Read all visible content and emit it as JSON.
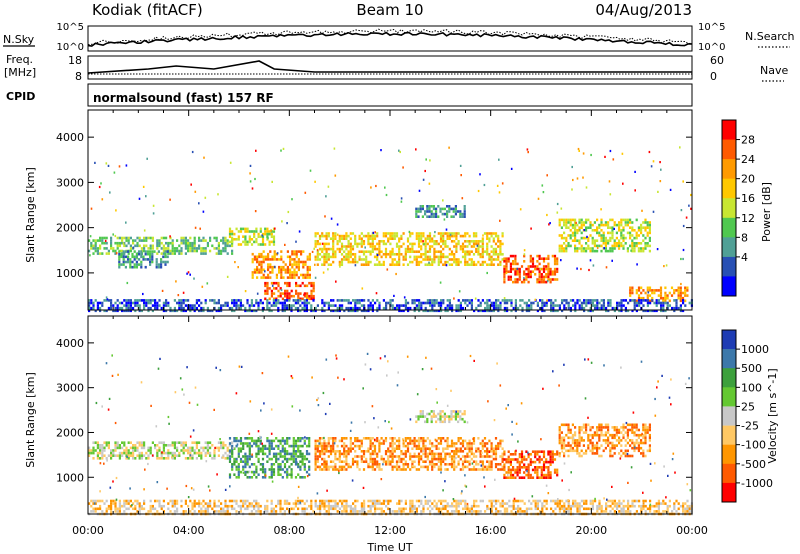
{
  "header": {
    "radar": "Kodiak (fitACF)",
    "beam": "Beam 10",
    "date": "04/Aug/2013"
  },
  "strip_panels": {
    "nsky_label": "N.Sky",
    "nsearch_label": "N.Search",
    "nsky_ticks": [
      "10^5",
      "10^0"
    ],
    "nsearch_ticks": [
      "10^5",
      "10^0"
    ],
    "freq_label_line1": "Freq.",
    "freq_label_line2": "[MHz]",
    "freq_ticks": [
      "18",
      "8"
    ],
    "nave_label": "Nave",
    "nave_ticks": [
      "60",
      "0"
    ],
    "cpid_label": "CPID",
    "cpid_value": "normalsound (fast) 157 RF"
  },
  "chart_data": [
    {
      "type": "heatmap",
      "name": "power",
      "ylabel": "Slant Range [km]",
      "xlabel": "",
      "x_ticks": [
        "00:00",
        "04:00",
        "08:00",
        "12:00",
        "16:00",
        "20:00",
        "00:00"
      ],
      "y_ticks": [
        "1000",
        "2000",
        "3000",
        "4000"
      ],
      "xlim": [
        0,
        24
      ],
      "ylim": [
        180,
        4600
      ],
      "colorbar_label": "Power [dB]",
      "colorbar_ticks": [
        "28",
        "24",
        "20",
        "16",
        "12",
        "8",
        "4"
      ],
      "colorbar_colors": [
        "#ff0000",
        "#ff5a00",
        "#ff9a00",
        "#ffc800",
        "#c8e632",
        "#50c850",
        "#50a096",
        "#2850b4",
        "#0000ff"
      ],
      "echo_regions": [
        {
          "t0": 0.0,
          "t1": 5.7,
          "r0": 1450,
          "r1": 1800,
          "level": 5
        },
        {
          "t0": 1.2,
          "t1": 3.2,
          "r0": 1150,
          "r1": 1500,
          "level": 6
        },
        {
          "t0": 5.6,
          "t1": 7.4,
          "r0": 1600,
          "r1": 2000,
          "level": 4
        },
        {
          "t0": 6.5,
          "t1": 8.8,
          "r0": 900,
          "r1": 1500,
          "level": 2
        },
        {
          "t0": 7.0,
          "t1": 9.0,
          "r0": 400,
          "r1": 800,
          "level": 1
        },
        {
          "t0": 9.0,
          "t1": 16.5,
          "r0": 1200,
          "r1": 1900,
          "level": 3
        },
        {
          "t0": 13.0,
          "t1": 15.0,
          "r0": 2250,
          "r1": 2500,
          "level": 6
        },
        {
          "t0": 16.5,
          "t1": 18.6,
          "r0": 800,
          "r1": 1400,
          "level": 1
        },
        {
          "t0": 18.7,
          "t1": 22.3,
          "r0": 1500,
          "r1": 2200,
          "level": 4
        },
        {
          "t0": 21.5,
          "t1": 23.8,
          "r0": 380,
          "r1": 700,
          "level": 2
        },
        {
          "t0": 0.0,
          "t1": 24.0,
          "r0": 180,
          "r1": 420,
          "level": 7
        }
      ]
    },
    {
      "type": "heatmap",
      "name": "velocity",
      "ylabel": "Slant Range [km]",
      "xlabel": "Time UT",
      "x_ticks": [
        "00:00",
        "04:00",
        "08:00",
        "12:00",
        "16:00",
        "20:00",
        "00:00"
      ],
      "y_ticks": [
        "1000",
        "2000",
        "3000",
        "4000"
      ],
      "xlim": [
        0,
        24
      ],
      "ylim": [
        180,
        4600
      ],
      "colorbar_label": "Velocity [m s^-1]",
      "colorbar_ticks": [
        "1000",
        "500",
        "100",
        "25",
        "-25",
        "-100",
        "-500",
        "-1000"
      ],
      "colorbar_colors": [
        "#1e3cb4",
        "#3c78aa",
        "#3ca03c",
        "#64c832",
        "#c8c8c8",
        "#ffc864",
        "#ff9600",
        "#ff5a00",
        "#ff0000"
      ],
      "echo_regions": [
        {
          "t0": 0.0,
          "t1": 5.7,
          "r0": 1450,
          "r1": 1800,
          "level": 4
        },
        {
          "t0": 5.6,
          "t1": 8.8,
          "r0": 1000,
          "r1": 1900,
          "level": 2
        },
        {
          "t0": 9.0,
          "t1": 16.5,
          "r0": 1200,
          "r1": 1900,
          "level": 6
        },
        {
          "t0": 13.0,
          "t1": 15.0,
          "r0": 2250,
          "r1": 2500,
          "level": 4
        },
        {
          "t0": 16.5,
          "t1": 18.6,
          "r0": 1000,
          "r1": 1600,
          "level": 7
        },
        {
          "t0": 18.7,
          "t1": 22.3,
          "r0": 1500,
          "r1": 2200,
          "level": 6
        },
        {
          "t0": 0.0,
          "t1": 24.0,
          "r0": 180,
          "r1": 500,
          "level": 5
        }
      ]
    }
  ]
}
